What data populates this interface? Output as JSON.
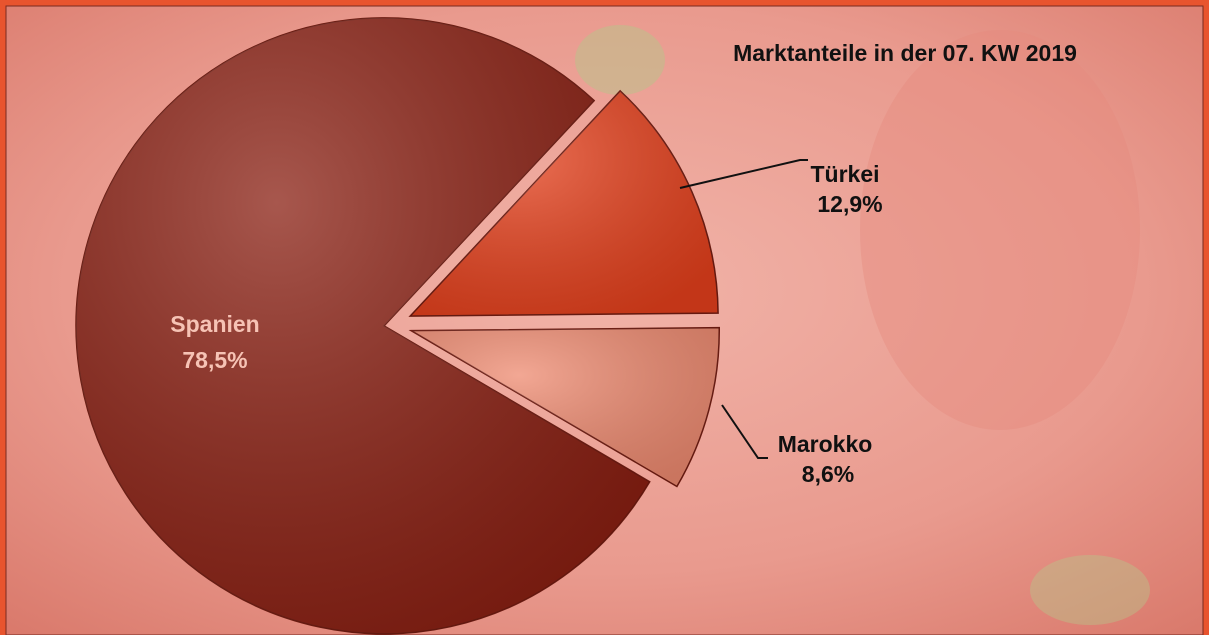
{
  "chart_data": {
    "type": "pie",
    "title": "Marktanteile in der 07. KW 2019",
    "categories": [
      "Türkei",
      "Marokko",
      "Spanien"
    ],
    "values": [
      12.9,
      8.6,
      78.5
    ],
    "value_labels": [
      "12,9%",
      "8,6%",
      "78,5%"
    ],
    "colors": [
      "#e5401c",
      "#ee8a70",
      "#8a1f12"
    ]
  }
}
